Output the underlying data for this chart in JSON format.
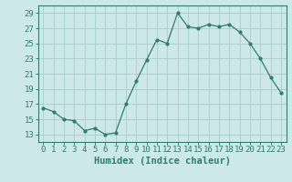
{
  "x": [
    0,
    1,
    2,
    3,
    4,
    5,
    6,
    7,
    8,
    9,
    10,
    11,
    12,
    13,
    14,
    15,
    16,
    17,
    18,
    19,
    20,
    21,
    22,
    23
  ],
  "y": [
    16.5,
    16.0,
    15.0,
    14.8,
    13.5,
    13.8,
    13.0,
    13.2,
    17.0,
    20.0,
    22.8,
    25.5,
    25.0,
    29.0,
    27.2,
    27.0,
    27.5,
    27.2,
    27.5,
    26.5,
    25.0,
    23.0,
    20.5,
    18.5
  ],
  "line_color": "#2e7d6e",
  "marker": "o",
  "marker_size": 2,
  "bg_color": "#cce8e8",
  "grid_color": "#aacccc",
  "xlabel": "Humidex (Indice chaleur)",
  "ylabel": "",
  "xlim": [
    -0.5,
    23.5
  ],
  "ylim": [
    12,
    30
  ],
  "yticks": [
    13,
    15,
    17,
    19,
    21,
    23,
    25,
    27,
    29
  ],
  "xticks": [
    0,
    1,
    2,
    3,
    4,
    5,
    6,
    7,
    8,
    9,
    10,
    11,
    12,
    13,
    14,
    15,
    16,
    17,
    18,
    19,
    20,
    21,
    22,
    23
  ],
  "tick_color": "#2e7d6e",
  "axis_color": "#2e7d6e",
  "label_fontsize": 6.5,
  "xlabel_fontsize": 7.5
}
